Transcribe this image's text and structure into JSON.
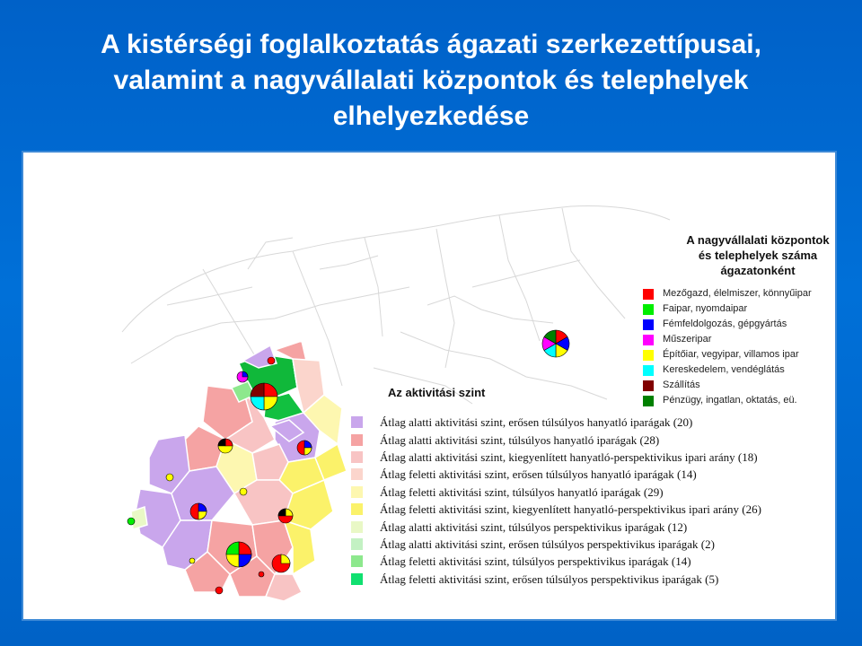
{
  "title": {
    "line1": "A kistérségi foglalkoztatás ágazati szerkezettípusai,",
    "line2": "valamint a nagyvállalati központok és telephelyek",
    "line3": "elhelyezkedése"
  },
  "industry_legend": {
    "title_line1": "A nagyvállalati központok",
    "title_line2": "és telephelyek száma",
    "title_line3": "ágazatonként",
    "items": [
      {
        "label": "Mezőgazd, élelmiszer, könnyűipar",
        "color": "#ff0000"
      },
      {
        "label": "Faipar, nyomdaipar",
        "color": "#00ee00"
      },
      {
        "label": "Fémfeldolgozás, gépgyártás",
        "color": "#0000ff"
      },
      {
        "label": "Műszeripar",
        "color": "#ff00ff"
      },
      {
        "label": "Építőiar, vegyipar, villamos ipar",
        "color": "#ffff00"
      },
      {
        "label": "Kereskedelem, vendéglátás",
        "color": "#00ffff"
      },
      {
        "label": "Szállítás",
        "color": "#800000"
      },
      {
        "label": "Pénzügy, ingatlan, oktatás, eü.",
        "color": "#008000"
      }
    ]
  },
  "activity_legend": {
    "title": "Az aktivitási szint",
    "items": [
      {
        "label": "Átlag alatti aktivitási szint, erősen túlsúlyos hanyatló iparágak (20)",
        "color": "#c9a6ec"
      },
      {
        "label": "Átlag alatti aktivitási szint, túlsúlyos hanyatló iparágak (28)",
        "color": "#f5a3a3"
      },
      {
        "label": "Átlag alatti aktivitási szint, kiegyenlített hanyatló-perspektivikus ipari arány (18)",
        "color": "#f8c4c4"
      },
      {
        "label": "Átlag feletti aktivitási szint, erősen túlsúlyos hanyatló iparágak (14)",
        "color": "#fbd5cc"
      },
      {
        "label": "Átlag feletti aktivitási szint, túlsúlyos hanyatló iparágak (29)",
        "color": "#fdf7b0"
      },
      {
        "label": "Átlag feletti aktivitási szint, kiegyenlített hanyatló-perspektivikus ipari arány (26)",
        "color": "#fbf26a"
      },
      {
        "label": "Átlag alatti aktivitási szint, túlsúlyos perspektivikus iparágak (12)",
        "color": "#e9f8c6"
      },
      {
        "label": "Átlag alatti aktivitási szint, erősen túlsúlyos perspektivikus iparágak (2)",
        "color": "#c3f1c3"
      },
      {
        "label": "Átlag feletti aktivitási szint, túlsúlyos perspektivikus iparágak (14)",
        "color": "#8de88d"
      },
      {
        "label": "Átlag feletti aktivitási szint, erősen túlsúlyos perspektivikus iparágak (5)",
        "color": "#10e070"
      }
    ]
  }
}
